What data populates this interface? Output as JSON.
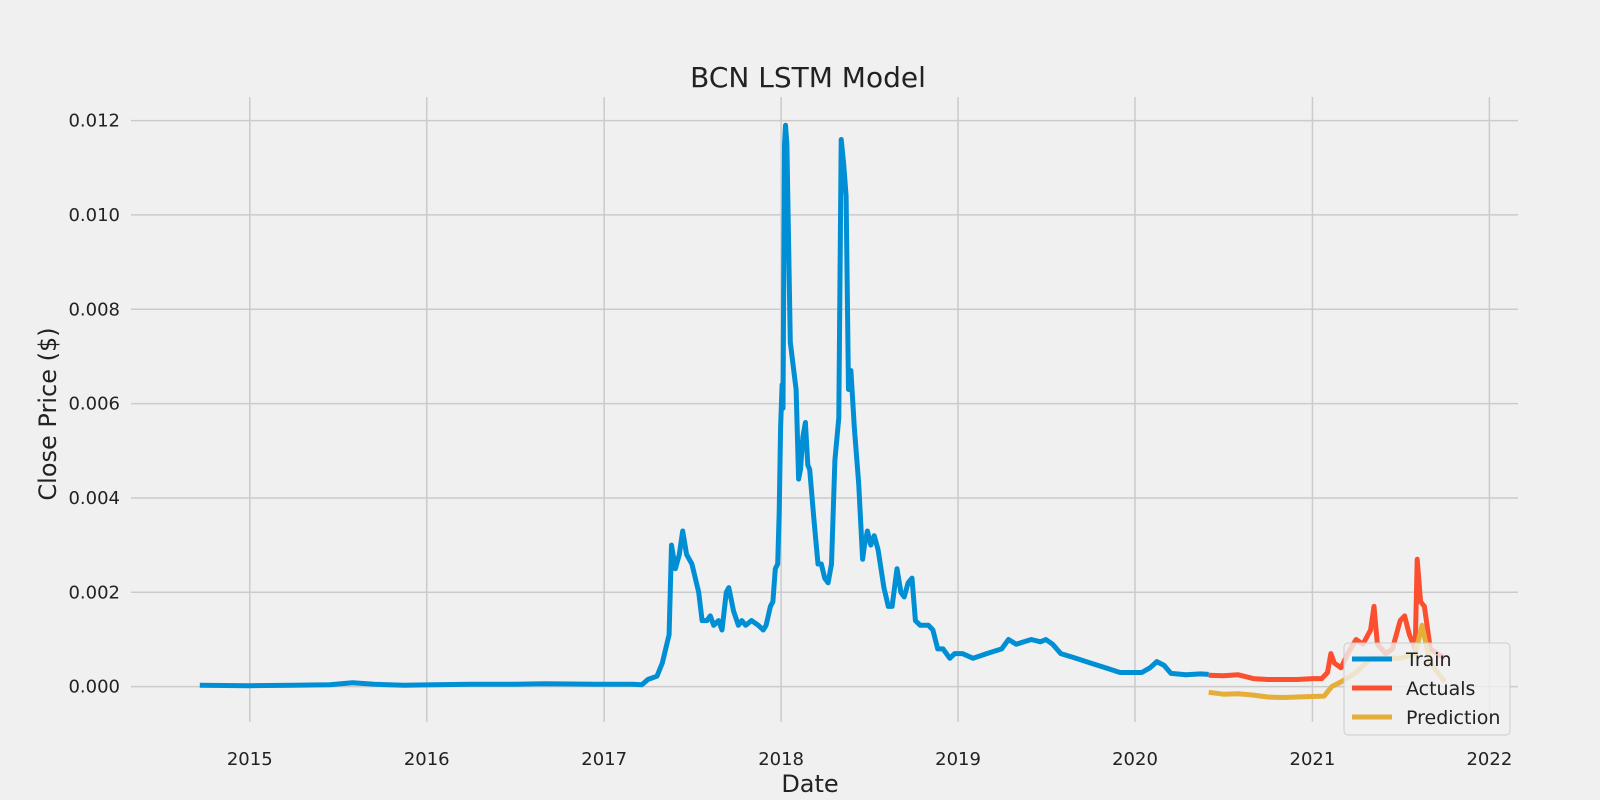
{
  "chart_data": {
    "type": "line",
    "title": "BCN LSTM Model",
    "xlabel": "Date",
    "ylabel": "Close Price ($)",
    "xlim": [
      "2014-05-01",
      "2022-03-01"
    ],
    "ylim": [
      -0.00075,
      0.0125
    ],
    "x_ticks": [
      "2015-01-01",
      "2016-01-01",
      "2017-01-01",
      "2018-01-01",
      "2019-01-01",
      "2020-01-01",
      "2021-01-01",
      "2022-01-01"
    ],
    "x_tick_labels": [
      "2015",
      "2016",
      "2017",
      "2018",
      "2019",
      "2020",
      "2021",
      "2022"
    ],
    "y_ticks": [
      0,
      0.002,
      0.004,
      0.006,
      0.008,
      0.01,
      0.012
    ],
    "y_tick_labels": [
      "0.000",
      "0.002",
      "0.004",
      "0.006",
      "0.008",
      "0.010",
      "0.012"
    ],
    "grid": true,
    "legend_position": "lower-right",
    "series": [
      {
        "name": "Train",
        "color": "#008fd5",
        "points": [
          [
            "2014-09-20",
            3e-05
          ],
          [
            "2015-01-01",
            2e-05
          ],
          [
            "2015-04-01",
            3e-05
          ],
          [
            "2015-06-15",
            4e-05
          ],
          [
            "2015-08-01",
            8e-05
          ],
          [
            "2015-09-15",
            5e-05
          ],
          [
            "2015-11-15",
            3e-05
          ],
          [
            "2016-01-15",
            4e-05
          ],
          [
            "2016-04-01",
            5e-05
          ],
          [
            "2016-07-01",
            5e-05
          ],
          [
            "2016-09-01",
            6e-05
          ],
          [
            "2016-12-15",
            5e-05
          ],
          [
            "2017-03-01",
            5e-05
          ],
          [
            "2017-03-20",
            4e-05
          ],
          [
            "2017-04-01",
            0.00015
          ],
          [
            "2017-04-20",
            0.00022
          ],
          [
            "2017-05-01",
            0.0005
          ],
          [
            "2017-05-15",
            0.0011
          ],
          [
            "2017-05-20",
            0.003
          ],
          [
            "2017-05-28",
            0.0025
          ],
          [
            "2017-06-05",
            0.0028
          ],
          [
            "2017-06-12",
            0.0033
          ],
          [
            "2017-06-20",
            0.0028
          ],
          [
            "2017-07-01",
            0.0026
          ],
          [
            "2017-07-15",
            0.002
          ],
          [
            "2017-07-22",
            0.0014
          ],
          [
            "2017-08-01",
            0.0014
          ],
          [
            "2017-08-08",
            0.0015
          ],
          [
            "2017-08-15",
            0.0013
          ],
          [
            "2017-08-25",
            0.0014
          ],
          [
            "2017-09-01",
            0.0012
          ],
          [
            "2017-09-10",
            0.002
          ],
          [
            "2017-09-15",
            0.0021
          ],
          [
            "2017-09-25",
            0.0016
          ],
          [
            "2017-10-05",
            0.0013
          ],
          [
            "2017-10-12",
            0.0014
          ],
          [
            "2017-10-20",
            0.0013
          ],
          [
            "2017-11-01",
            0.0014
          ],
          [
            "2017-11-15",
            0.0013
          ],
          [
            "2017-11-25",
            0.0012
          ],
          [
            "2017-12-01",
            0.0013
          ],
          [
            "2017-12-10",
            0.0017
          ],
          [
            "2017-12-15",
            0.0018
          ],
          [
            "2017-12-20",
            0.0025
          ],
          [
            "2017-12-25",
            0.0026
          ],
          [
            "2017-12-28",
            0.0037
          ],
          [
            "2017-12-31",
            0.0055
          ],
          [
            "2018-01-03",
            0.0064
          ],
          [
            "2018-01-05",
            0.0059
          ],
          [
            "2018-01-08",
            0.0115
          ],
          [
            "2018-01-10",
            0.0119
          ],
          [
            "2018-01-13",
            0.0115
          ],
          [
            "2018-01-20",
            0.0073
          ],
          [
            "2018-02-01",
            0.0063
          ],
          [
            "2018-02-06",
            0.0044
          ],
          [
            "2018-02-10",
            0.0046
          ],
          [
            "2018-02-15",
            0.0053
          ],
          [
            "2018-02-20",
            0.0056
          ],
          [
            "2018-02-25",
            0.0047
          ],
          [
            "2018-03-01",
            0.0046
          ],
          [
            "2018-03-10",
            0.0035
          ],
          [
            "2018-03-18",
            0.0026
          ],
          [
            "2018-03-25",
            0.0026
          ],
          [
            "2018-04-01",
            0.0023
          ],
          [
            "2018-04-08",
            0.0022
          ],
          [
            "2018-04-15",
            0.0026
          ],
          [
            "2018-04-22",
            0.0048
          ],
          [
            "2018-04-30",
            0.0057
          ],
          [
            "2018-05-05",
            0.0116
          ],
          [
            "2018-05-10",
            0.0111
          ],
          [
            "2018-05-15",
            0.0104
          ],
          [
            "2018-05-20",
            0.0063
          ],
          [
            "2018-05-25",
            0.0067
          ],
          [
            "2018-06-01",
            0.0055
          ],
          [
            "2018-06-10",
            0.0043
          ],
          [
            "2018-06-18",
            0.0027
          ],
          [
            "2018-06-22",
            0.003
          ],
          [
            "2018-06-28",
            0.0033
          ],
          [
            "2018-07-05",
            0.003
          ],
          [
            "2018-07-12",
            0.0032
          ],
          [
            "2018-07-20",
            0.0029
          ],
          [
            "2018-08-01",
            0.0021
          ],
          [
            "2018-08-10",
            0.0017
          ],
          [
            "2018-08-18",
            0.0017
          ],
          [
            "2018-08-28",
            0.0025
          ],
          [
            "2018-09-05",
            0.002
          ],
          [
            "2018-09-12",
            0.0019
          ],
          [
            "2018-09-20",
            0.0022
          ],
          [
            "2018-09-28",
            0.0023
          ],
          [
            "2018-10-05",
            0.0014
          ],
          [
            "2018-10-15",
            0.0013
          ],
          [
            "2018-10-25",
            0.0013
          ],
          [
            "2018-11-01",
            0.0013
          ],
          [
            "2018-11-10",
            0.0012
          ],
          [
            "2018-11-20",
            0.0008
          ],
          [
            "2018-12-01",
            0.0008
          ],
          [
            "2018-12-15",
            0.0006
          ],
          [
            "2018-12-25",
            0.0007
          ],
          [
            "2019-01-10",
            0.0007
          ],
          [
            "2019-02-01",
            0.0006
          ],
          [
            "2019-03-01",
            0.0007
          ],
          [
            "2019-04-01",
            0.0008
          ],
          [
            "2019-04-15",
            0.001
          ],
          [
            "2019-05-01",
            0.0009
          ],
          [
            "2019-06-01",
            0.001
          ],
          [
            "2019-06-20",
            0.00095
          ],
          [
            "2019-07-01",
            0.001
          ],
          [
            "2019-07-15",
            0.0009
          ],
          [
            "2019-08-01",
            0.0007
          ],
          [
            "2019-09-01",
            0.0006
          ],
          [
            "2019-10-01",
            0.0005
          ],
          [
            "2019-11-01",
            0.0004
          ],
          [
            "2019-12-01",
            0.0003
          ],
          [
            "2020-01-15",
            0.0003
          ],
          [
            "2020-02-01",
            0.0004
          ],
          [
            "2020-02-15",
            0.00053
          ],
          [
            "2020-03-01",
            0.00045
          ],
          [
            "2020-03-15",
            0.00028
          ],
          [
            "2020-04-15",
            0.00025
          ],
          [
            "2020-05-15",
            0.00027
          ],
          [
            "2020-06-01",
            0.00026
          ]
        ]
      },
      {
        "name": "Actuals",
        "color": "#fc4f30",
        "points": [
          [
            "2020-06-01",
            0.00024
          ],
          [
            "2020-07-01",
            0.00023
          ],
          [
            "2020-08-01",
            0.00025
          ],
          [
            "2020-09-01",
            0.00017
          ],
          [
            "2020-10-01",
            0.00015
          ],
          [
            "2020-11-01",
            0.00015
          ],
          [
            "2020-12-01",
            0.00015
          ],
          [
            "2021-01-01",
            0.00017
          ],
          [
            "2021-01-20",
            0.00017
          ],
          [
            "2021-02-01",
            0.0003
          ],
          [
            "2021-02-08",
            0.0007
          ],
          [
            "2021-02-15",
            0.0005
          ],
          [
            "2021-03-01",
            0.0004
          ],
          [
            "2021-03-15",
            0.0007
          ],
          [
            "2021-04-01",
            0.001
          ],
          [
            "2021-04-15",
            0.0009
          ],
          [
            "2021-05-01",
            0.0012
          ],
          [
            "2021-05-08",
            0.0017
          ],
          [
            "2021-05-15",
            0.0009
          ],
          [
            "2021-06-01",
            0.0007
          ],
          [
            "2021-06-15",
            0.0008
          ],
          [
            "2021-07-01",
            0.0014
          ],
          [
            "2021-07-10",
            0.0015
          ],
          [
            "2021-07-20",
            0.0011
          ],
          [
            "2021-08-01",
            0.0008
          ],
          [
            "2021-08-05",
            0.0027
          ],
          [
            "2021-08-12",
            0.0018
          ],
          [
            "2021-08-20",
            0.0017
          ],
          [
            "2021-09-01",
            0.0008
          ],
          [
            "2021-10-01",
            0.0006
          ]
        ]
      },
      {
        "name": "Prediction",
        "color": "#e5ae38",
        "points": [
          [
            "2020-06-01",
            -0.00012
          ],
          [
            "2020-07-01",
            -0.00016
          ],
          [
            "2020-08-01",
            -0.00015
          ],
          [
            "2020-09-01",
            -0.00018
          ],
          [
            "2020-10-01",
            -0.00022
          ],
          [
            "2020-11-01",
            -0.00023
          ],
          [
            "2020-12-01",
            -0.00022
          ],
          [
            "2021-01-01",
            -0.00021
          ],
          [
            "2021-01-25",
            -0.0002
          ],
          [
            "2021-02-10",
            0.0
          ],
          [
            "2021-03-01",
            0.0001
          ],
          [
            "2021-04-01",
            0.0003
          ],
          [
            "2021-05-01",
            0.0006
          ],
          [
            "2021-06-01",
            0.0006
          ],
          [
            "2021-07-01",
            0.0006
          ],
          [
            "2021-08-01",
            0.0007
          ],
          [
            "2021-08-15",
            0.0013
          ],
          [
            "2021-09-01",
            0.0005
          ],
          [
            "2021-10-01",
            0.0001
          ]
        ]
      }
    ]
  }
}
